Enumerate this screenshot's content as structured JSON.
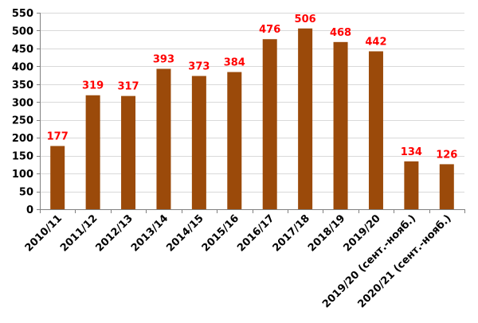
{
  "chart_data": {
    "type": "bar",
    "categories": [
      "2010/11",
      "2011/12",
      "2012/13",
      "2013/14",
      "2014/15",
      "2015/16",
      "2016/17",
      "2017/18",
      "2018/19",
      "2019/20",
      "2019/20 (сент.-нояб.)",
      "2020/21 (сент.-нояб.)"
    ],
    "values": [
      177,
      319,
      317,
      393,
      373,
      384,
      476,
      506,
      468,
      442,
      134,
      126
    ],
    "data_labels": [
      "177",
      "319",
      "317",
      "393",
      "373",
      "384",
      "476",
      "506",
      "468",
      "442",
      "134",
      "126"
    ],
    "y_ticks": [
      0,
      50,
      100,
      150,
      200,
      250,
      300,
      350,
      400,
      450,
      500,
      550
    ],
    "ylim": [
      0,
      550
    ],
    "grid": true,
    "legend": "none",
    "title": "",
    "xlabel": "",
    "ylabel": "",
    "colors": {
      "bar": "#9B4A0A",
      "data_label": "#FF0000",
      "grid": "#D9D9D9",
      "axis": "#808080"
    }
  }
}
